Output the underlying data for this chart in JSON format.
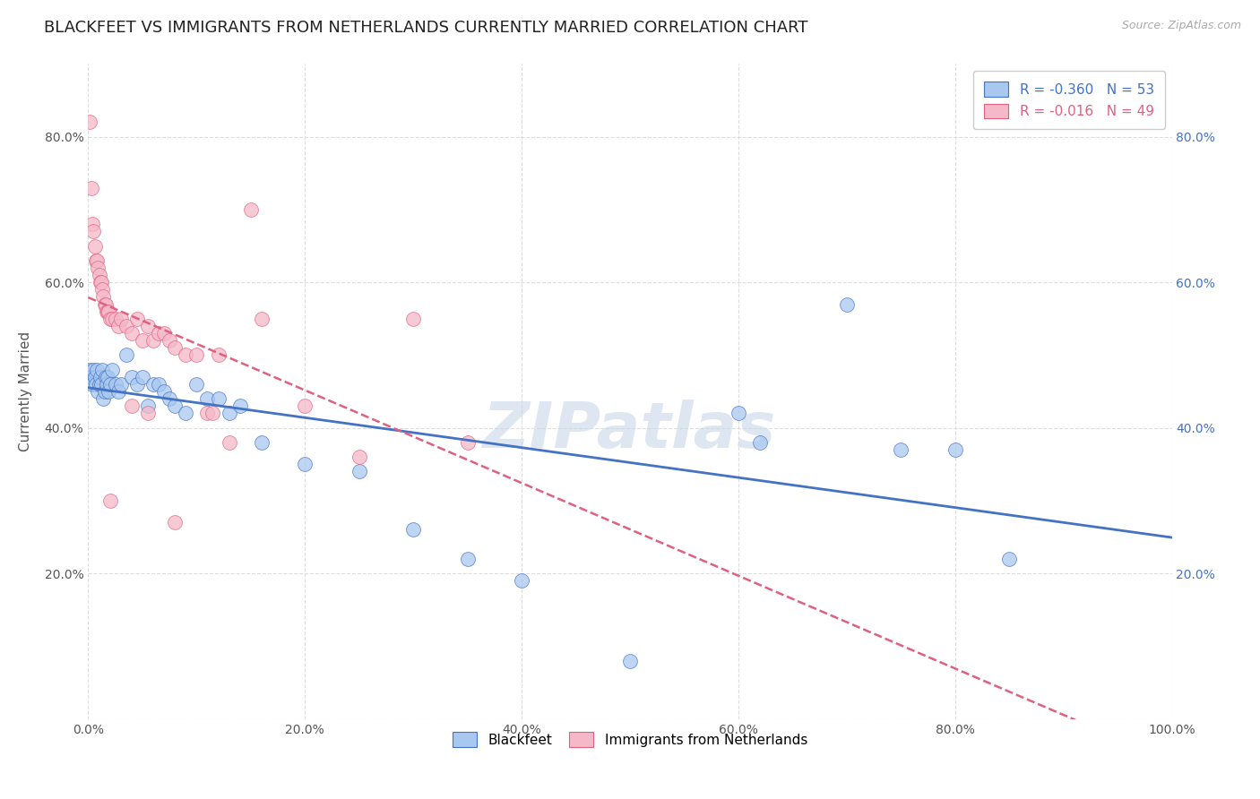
{
  "title": "BLACKFEET VS IMMIGRANTS FROM NETHERLANDS CURRENTLY MARRIED CORRELATION CHART",
  "source": "Source: ZipAtlas.com",
  "ylabel": "Currently Married",
  "legend_line1": "R = -0.360   N = 53",
  "legend_line2": "R = -0.016   N = 49",
  "blue_color": "#a8c8f0",
  "pink_color": "#f5b8c8",
  "blue_line_color": "#4472c4",
  "pink_line_color": "#e06080",
  "blue_scatter": [
    [
      0.001,
      0.48
    ],
    [
      0.002,
      0.47
    ],
    [
      0.003,
      0.47
    ],
    [
      0.004,
      0.46
    ],
    [
      0.005,
      0.48
    ],
    [
      0.006,
      0.47
    ],
    [
      0.007,
      0.46
    ],
    [
      0.008,
      0.48
    ],
    [
      0.009,
      0.45
    ],
    [
      0.01,
      0.46
    ],
    [
      0.011,
      0.47
    ],
    [
      0.012,
      0.46
    ],
    [
      0.013,
      0.48
    ],
    [
      0.014,
      0.44
    ],
    [
      0.015,
      0.45
    ],
    [
      0.016,
      0.47
    ],
    [
      0.017,
      0.46
    ],
    [
      0.018,
      0.47
    ],
    [
      0.019,
      0.45
    ],
    [
      0.02,
      0.46
    ],
    [
      0.022,
      0.48
    ],
    [
      0.025,
      0.46
    ],
    [
      0.028,
      0.45
    ],
    [
      0.03,
      0.46
    ],
    [
      0.035,
      0.5
    ],
    [
      0.04,
      0.47
    ],
    [
      0.045,
      0.46
    ],
    [
      0.05,
      0.47
    ],
    [
      0.055,
      0.43
    ],
    [
      0.06,
      0.46
    ],
    [
      0.065,
      0.46
    ],
    [
      0.07,
      0.45
    ],
    [
      0.075,
      0.44
    ],
    [
      0.08,
      0.43
    ],
    [
      0.09,
      0.42
    ],
    [
      0.1,
      0.46
    ],
    [
      0.11,
      0.44
    ],
    [
      0.12,
      0.44
    ],
    [
      0.13,
      0.42
    ],
    [
      0.14,
      0.43
    ],
    [
      0.16,
      0.38
    ],
    [
      0.2,
      0.35
    ],
    [
      0.25,
      0.34
    ],
    [
      0.3,
      0.26
    ],
    [
      0.35,
      0.22
    ],
    [
      0.4,
      0.19
    ],
    [
      0.5,
      0.08
    ],
    [
      0.7,
      0.57
    ],
    [
      0.75,
      0.37
    ],
    [
      0.8,
      0.37
    ],
    [
      0.85,
      0.22
    ],
    [
      0.6,
      0.42
    ],
    [
      0.62,
      0.38
    ]
  ],
  "pink_scatter": [
    [
      0.001,
      0.82
    ],
    [
      0.003,
      0.73
    ],
    [
      0.004,
      0.68
    ],
    [
      0.005,
      0.67
    ],
    [
      0.006,
      0.65
    ],
    [
      0.007,
      0.63
    ],
    [
      0.008,
      0.63
    ],
    [
      0.009,
      0.62
    ],
    [
      0.01,
      0.61
    ],
    [
      0.011,
      0.6
    ],
    [
      0.012,
      0.6
    ],
    [
      0.013,
      0.59
    ],
    [
      0.014,
      0.58
    ],
    [
      0.015,
      0.57
    ],
    [
      0.016,
      0.57
    ],
    [
      0.017,
      0.56
    ],
    [
      0.018,
      0.56
    ],
    [
      0.019,
      0.56
    ],
    [
      0.02,
      0.55
    ],
    [
      0.022,
      0.55
    ],
    [
      0.025,
      0.55
    ],
    [
      0.028,
      0.54
    ],
    [
      0.03,
      0.55
    ],
    [
      0.035,
      0.54
    ],
    [
      0.04,
      0.53
    ],
    [
      0.045,
      0.55
    ],
    [
      0.05,
      0.52
    ],
    [
      0.055,
      0.54
    ],
    [
      0.06,
      0.52
    ],
    [
      0.065,
      0.53
    ],
    [
      0.07,
      0.53
    ],
    [
      0.075,
      0.52
    ],
    [
      0.08,
      0.51
    ],
    [
      0.09,
      0.5
    ],
    [
      0.1,
      0.5
    ],
    [
      0.12,
      0.5
    ],
    [
      0.13,
      0.38
    ],
    [
      0.15,
      0.7
    ],
    [
      0.16,
      0.55
    ],
    [
      0.2,
      0.43
    ],
    [
      0.25,
      0.36
    ],
    [
      0.3,
      0.55
    ],
    [
      0.35,
      0.38
    ],
    [
      0.04,
      0.43
    ],
    [
      0.055,
      0.42
    ],
    [
      0.11,
      0.42
    ],
    [
      0.115,
      0.42
    ],
    [
      0.02,
      0.3
    ],
    [
      0.08,
      0.27
    ]
  ],
  "xlim": [
    0.0,
    1.0
  ],
  "ylim": [
    0.0,
    0.9
  ],
  "xticks": [
    0.0,
    0.2,
    0.4,
    0.6,
    0.8,
    1.0
  ],
  "yticks": [
    0.0,
    0.2,
    0.4,
    0.6,
    0.8
  ],
  "xticklabels": [
    "0.0%",
    "20.0%",
    "40.0%",
    "60.0%",
    "80.0%",
    "100.0%"
  ],
  "left_yticklabels": [
    "",
    "20.0%",
    "40.0%",
    "60.0%",
    "80.0%"
  ],
  "right_yticklabels": [
    "20.0%",
    "40.0%",
    "60.0%",
    "80.0%"
  ],
  "right_yticks": [
    0.2,
    0.4,
    0.6,
    0.8
  ],
  "title_fontsize": 13,
  "label_fontsize": 11,
  "tick_fontsize": 10,
  "bg_color": "#ffffff",
  "grid_color": "#dddddd",
  "watermark": "ZIPatlas"
}
